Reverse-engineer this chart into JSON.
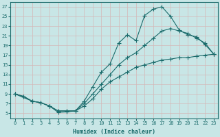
{
  "xlabel": "Humidex (Indice chaleur)",
  "bg_color": "#c8e6e6",
  "line_color": "#1a6b6b",
  "grid_color": "#b0d0d0",
  "xlim": [
    -0.5,
    23.5
  ],
  "ylim": [
    4.0,
    28.0
  ],
  "xticks": [
    0,
    1,
    2,
    3,
    4,
    5,
    6,
    7,
    8,
    9,
    10,
    11,
    12,
    13,
    14,
    15,
    16,
    17,
    18,
    19,
    20,
    21,
    22,
    23
  ],
  "yticks": [
    5,
    7,
    9,
    11,
    13,
    15,
    17,
    19,
    21,
    23,
    25,
    27
  ],
  "curve_upper_x": [
    0,
    1,
    2,
    3,
    4,
    5,
    6,
    7,
    8,
    9,
    10,
    11,
    12,
    13,
    14,
    15,
    16,
    17,
    18,
    19,
    20,
    21,
    22,
    23
  ],
  "curve_upper_y": [
    9.0,
    8.5,
    7.5,
    7.2,
    6.5,
    5.2,
    5.3,
    5.5,
    7.5,
    10.5,
    13.5,
    15.2,
    19.5,
    21.2,
    20.0,
    25.2,
    26.5,
    27.0,
    25.0,
    22.2,
    21.2,
    20.8,
    19.2,
    17.2
  ],
  "curve_mid_x": [
    0,
    1,
    2,
    3,
    4,
    5,
    6,
    7,
    8,
    9,
    10,
    11,
    12,
    13,
    14,
    15,
    16,
    17,
    18,
    19,
    20,
    21,
    22,
    23
  ],
  "curve_mid_y": [
    9.0,
    8.5,
    7.5,
    7.2,
    6.5,
    5.5,
    5.5,
    5.5,
    7.0,
    9.0,
    11.0,
    13.0,
    15.0,
    16.5,
    17.5,
    19.0,
    20.5,
    22.0,
    22.5,
    22.0,
    21.5,
    20.5,
    19.5,
    17.2
  ],
  "curve_lower_x": [
    0,
    2,
    3,
    4,
    5,
    6,
    7,
    8,
    9,
    10,
    11,
    12,
    13,
    14,
    15,
    16,
    17,
    18,
    19,
    20,
    21,
    22,
    23
  ],
  "curve_lower_y": [
    9.0,
    7.5,
    7.2,
    6.5,
    5.5,
    5.5,
    5.5,
    6.5,
    8.0,
    10.0,
    11.5,
    12.5,
    13.5,
    14.5,
    15.0,
    15.5,
    16.0,
    16.2,
    16.5,
    16.5,
    16.8,
    17.0,
    17.2
  ],
  "tick_fontsize": 5,
  "xlabel_fontsize": 6,
  "linewidth": 0.8,
  "marker_size": 3
}
